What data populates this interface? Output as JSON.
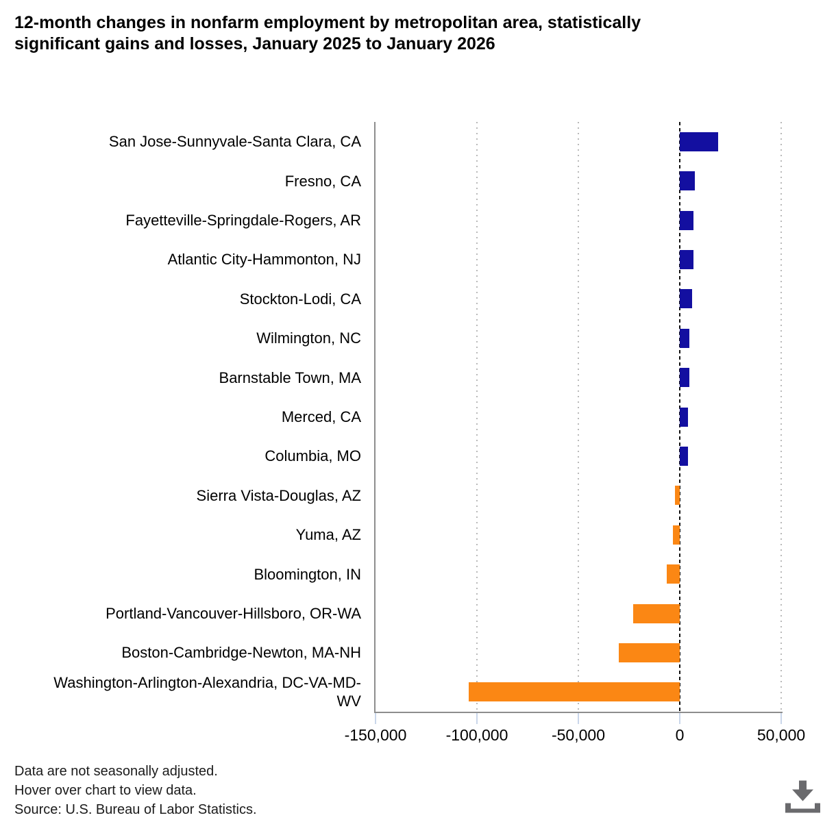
{
  "title": {
    "line1": "12-month changes in nonfarm employment by metropolitan area, statistically",
    "line2": "significant gains and losses, January 2025 to January 2026"
  },
  "footer": {
    "line1": "Data are not seasonally adjusted.",
    "line2": "Hover over chart to view data.",
    "line3": "Source: U.S. Bureau of Labor Statistics."
  },
  "download_label": "Download chart",
  "colors": {
    "positive_bar": "#130fa0",
    "negative_bar": "#fb8714",
    "gridline": "#b9b9b9",
    "zero_line": "#111111",
    "axis_line": "#8d8d8d",
    "tick_mark": "#c9d6ea",
    "icon": "#6a6a6d"
  },
  "chart_data": {
    "type": "bar",
    "orientation": "horizontal",
    "title": "12-month changes in nonfarm employment by metropolitan area, statistically significant gains and losses, January 2025 to January 2026",
    "categories": [
      "San Jose-Sunnyvale-Santa Clara, CA",
      "Fresno, CA",
      "Fayetteville-Springdale-Rogers, AR",
      "Atlantic City-Hammonton, NJ",
      "Stockton-Lodi, CA",
      "Wilmington, NC",
      "Barnstable Town, MA",
      "Merced, CA",
      "Columbia, MO",
      "Sierra Vista-Douglas, AZ",
      "Yuma, AZ",
      "Bloomington, IN",
      "Portland-Vancouver-Hillsboro, OR-WA",
      "Boston-Cambridge-Newton, MA-NH",
      "Washington-Arlington-Alexandria, DC-VA-MD-WV"
    ],
    "values": [
      19000,
      7500,
      6900,
      6800,
      6100,
      4700,
      4600,
      4100,
      4000,
      -2300,
      -3400,
      -6500,
      -23000,
      -30000,
      -104000
    ],
    "xlabel": "",
    "ylabel": "",
    "xlim": [
      -150000,
      50000
    ],
    "xticks": [
      -150000,
      -100000,
      -50000,
      0,
      50000
    ],
    "xtick_labels": [
      "-150,000",
      "-100,000",
      "-50,000",
      "0",
      "50,000"
    ],
    "grid": "vertical dotted at x ticks, dashed black line at zero",
    "legend": "none",
    "series_colors": {
      "gains": "#130fa0",
      "losses": "#fb8714"
    }
  }
}
